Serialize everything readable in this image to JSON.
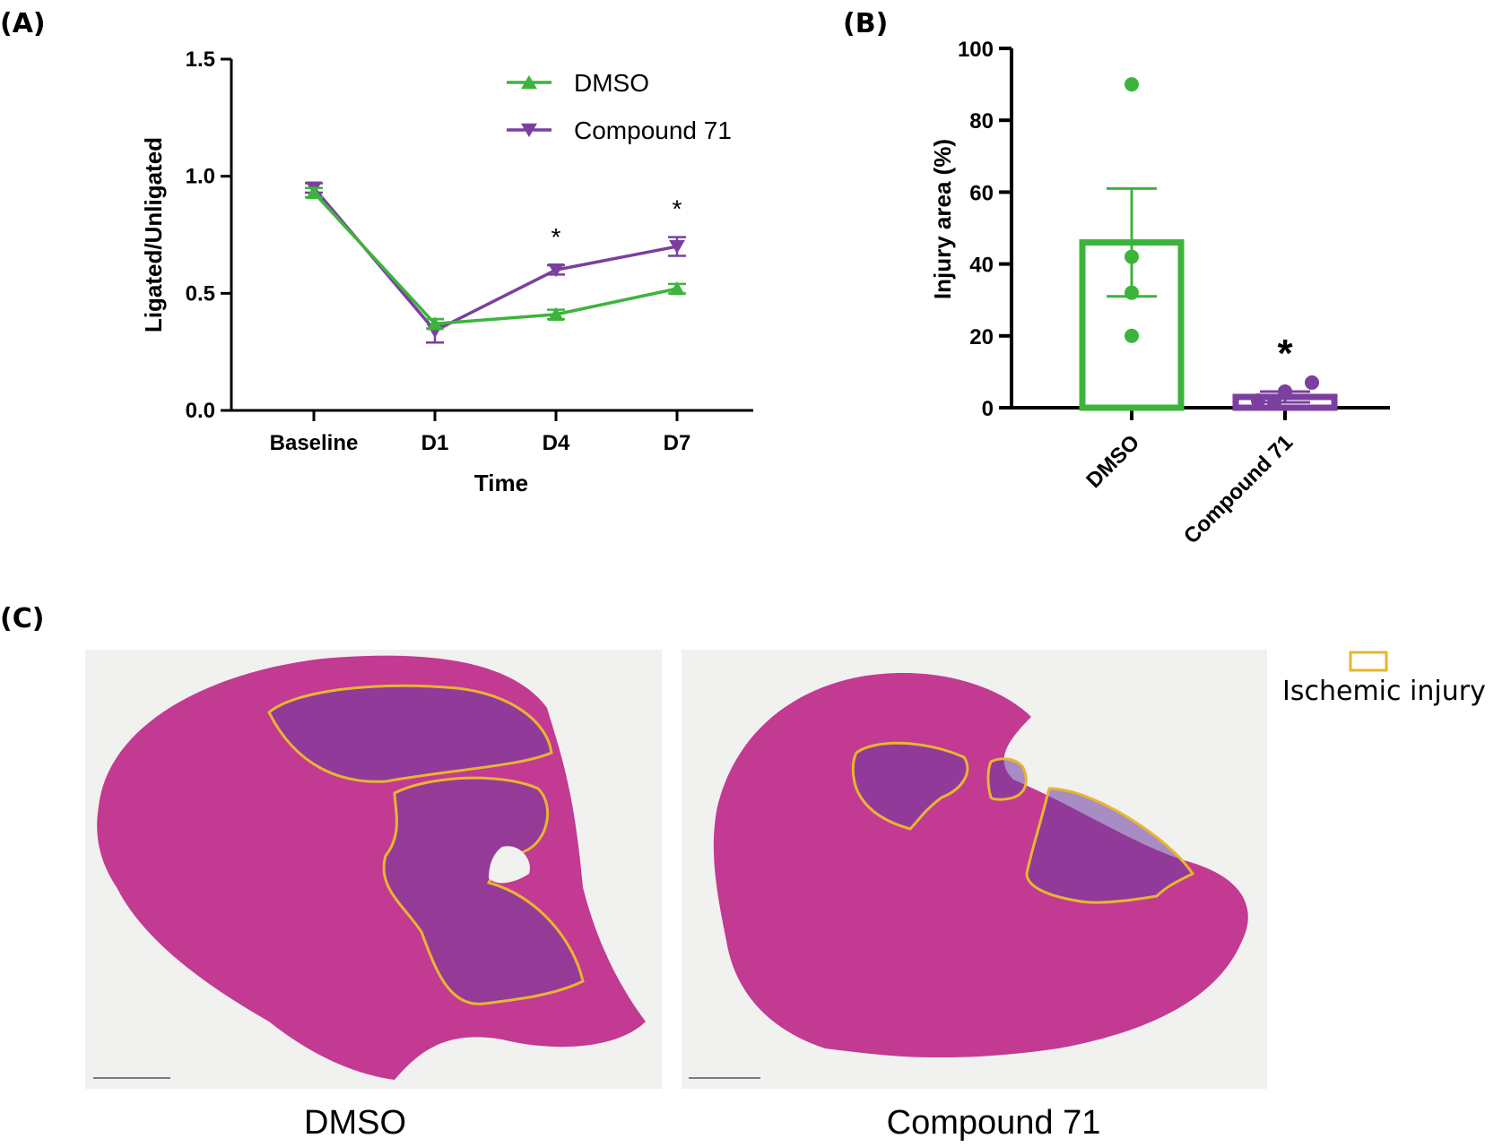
{
  "panels": {
    "a": "(A)",
    "b": "(B)",
    "c": "(C)"
  },
  "colors": {
    "dmso": "#3cb43c",
    "compound": "#7b3fa0",
    "injury_outline": "#e8b530",
    "tissue": "#c23a92",
    "injury_fill": "#5a3aa6"
  },
  "chart_data": [
    {
      "type": "line",
      "title": "",
      "xlabel": "Time",
      "ylabel": "Ligated/Unligated",
      "categories": [
        "Baseline",
        "D1",
        "D4",
        "D7"
      ],
      "ylim": [
        0,
        1.5
      ],
      "yticks": [
        "0.0",
        "0.5",
        "1.0",
        "1.5"
      ],
      "series": [
        {
          "name": "DMSO",
          "marker": "triangle-up",
          "values": [
            0.93,
            0.37,
            0.41,
            0.52
          ],
          "errors": [
            0.02,
            0.02,
            0.02,
            0.02
          ]
        },
        {
          "name": "Compound 71",
          "marker": "triangle-down",
          "values": [
            0.95,
            0.34,
            0.6,
            0.7
          ],
          "errors": [
            0.02,
            0.05,
            0.02,
            0.04
          ]
        }
      ],
      "annotations": [
        {
          "category": "D4",
          "text": "*"
        },
        {
          "category": "D7",
          "text": "*"
        }
      ],
      "legend": "top-right"
    },
    {
      "type": "bar",
      "title": "",
      "xlabel": "",
      "ylabel": "Injury area (%)",
      "categories": [
        "DMSO",
        "Compound 71"
      ],
      "ylim": [
        0,
        100
      ],
      "yticks": [
        "0",
        "20",
        "40",
        "60",
        "80",
        "100"
      ],
      "values": [
        46,
        3
      ],
      "errors": [
        15,
        1.5
      ],
      "points": [
        [
          90,
          42,
          32,
          20
        ],
        [
          7,
          4.5,
          2,
          1.5
        ]
      ],
      "annotations": [
        {
          "category": "Compound 71",
          "text": "*"
        }
      ]
    }
  ],
  "micrographs": {
    "legend_label": "Ischemic injury",
    "captions": [
      "DMSO",
      "Compound 71"
    ]
  }
}
